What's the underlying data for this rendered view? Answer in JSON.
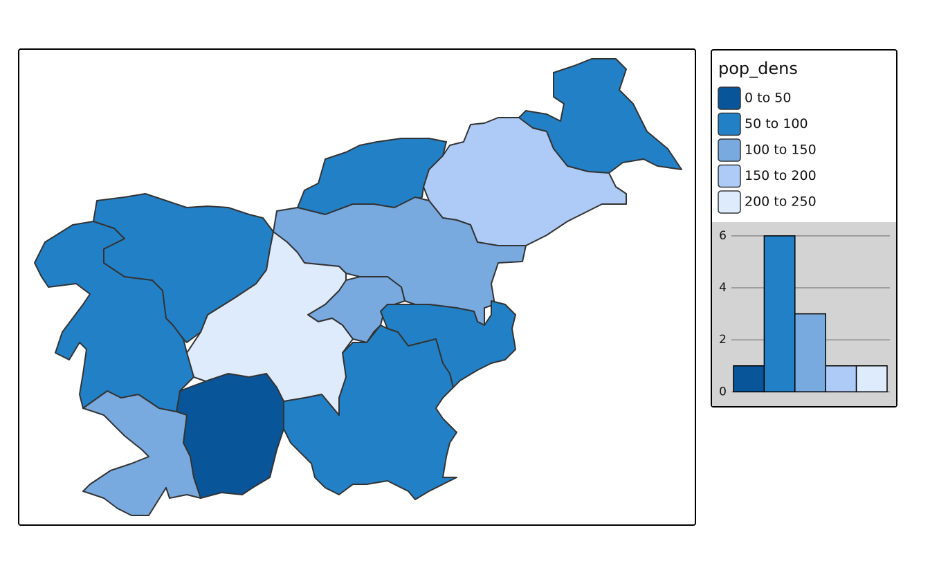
{
  "legend": {
    "title": "pop_dens",
    "classes": [
      {
        "label": "0 to 50",
        "color": "#08559a"
      },
      {
        "label": "50 to 100",
        "color": "#2281c6"
      },
      {
        "label": "100 to 150",
        "color": "#78aadf"
      },
      {
        "label": "150 to 200",
        "color": "#adcbf6"
      },
      {
        "label": "200 to 250",
        "color": "#deebfc"
      }
    ]
  },
  "chart_data": {
    "type": "bar",
    "values": [
      1,
      6,
      3,
      1,
      1
    ],
    "ylim": [
      -0.55,
      6.53
    ],
    "yticks": [
      0,
      2,
      4,
      6
    ],
    "grid": true
  }
}
